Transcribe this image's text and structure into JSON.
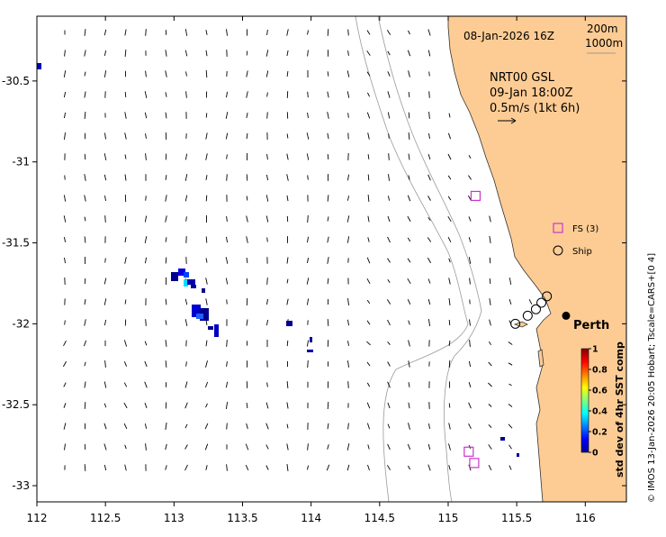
{
  "map": {
    "title_date": "08-Jan-2026 16Z",
    "product": "NRT00 GSL",
    "current_date": "09-Jan 18:00Z",
    "vector_scale": "0.5m/s (1kt 6h)",
    "contour_200": "200m",
    "contour_1000": "1000m",
    "city_label": "Perth",
    "credit": "© IMOS 13-Jan-2026 20:05 Hobart; Tscale=CARS+[0 4]",
    "x_ticks": [
      "112",
      "112.5",
      "113",
      "113.5",
      "114",
      "114.5",
      "115",
      "115.5",
      "116"
    ],
    "y_ticks": [
      "-30.5",
      "-31",
      "-31.5",
      "-32",
      "-32.5",
      "-33"
    ],
    "extent": {
      "lon": [
        112,
        116.3
      ],
      "lat": [
        -33.1,
        -30.1
      ]
    },
    "colors": {
      "land": "#fdcc94",
      "fs_marker": "#cc33cc",
      "contour": "#9a9a9a"
    }
  },
  "legend": {
    "fs_label": "FS (3)",
    "ship_label": "Ship"
  },
  "colorbar": {
    "label": "std dev of 4hr SST comp",
    "ticks": [
      "0",
      "0.2",
      "0.4",
      "0.6",
      "0.8",
      "1"
    ],
    "range": [
      0,
      1
    ]
  },
  "markers": {
    "fs": [
      {
        "lon": 115.2,
        "lat": -31.21
      },
      {
        "lon": 115.15,
        "lat": -32.79
      },
      {
        "lon": 115.19,
        "lat": -32.86
      }
    ],
    "ships": [
      {
        "lon": 115.49,
        "lat": -32.0
      },
      {
        "lon": 115.58,
        "lat": -31.95
      },
      {
        "lon": 115.64,
        "lat": -31.91
      },
      {
        "lon": 115.68,
        "lat": -31.87
      },
      {
        "lon": 115.72,
        "lat": -31.83
      }
    ],
    "perth": {
      "lon": 115.86,
      "lat": -31.95
    }
  }
}
